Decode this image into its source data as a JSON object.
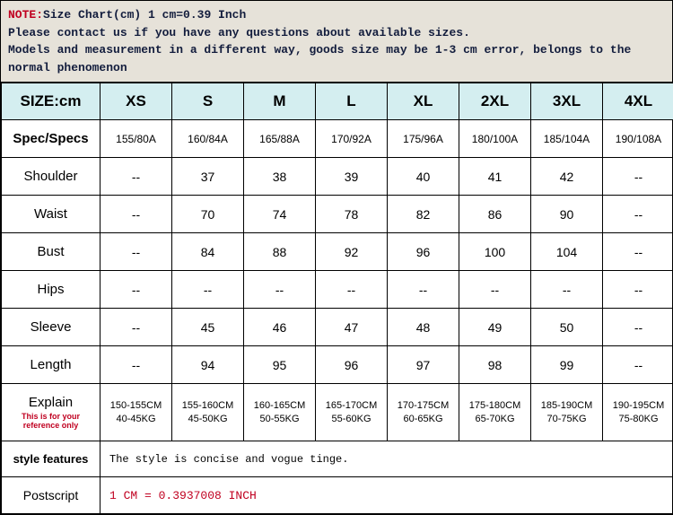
{
  "note": {
    "title": "NOTE:",
    "line1": "Size Chart(cm) 1 cm=0.39 Inch",
    "line2": "Please contact us if you have any questions about available sizes.",
    "line3": "Models and measurement in a different way, goods size may be 1-3 cm error, belongs to the normal phenomenon"
  },
  "colors": {
    "note_bg": "#e6e2d9",
    "note_text": "#131d3d",
    "accent_red": "#c00020",
    "header_bg": "#d4eef0"
  },
  "headers": [
    "SIZE:cm",
    "XS",
    "S",
    "M",
    "L",
    "XL",
    "2XL",
    "3XL",
    "4XL"
  ],
  "rows": [
    {
      "label": "Spec/Specs",
      "type": "spec",
      "cells": [
        "155/80A",
        "160/84A",
        "165/88A",
        "170/92A",
        "175/96A",
        "180/100A",
        "185/104A",
        "190/108A"
      ]
    },
    {
      "label": "Shoulder",
      "type": "data",
      "cells": [
        "--",
        "37",
        "38",
        "39",
        "40",
        "41",
        "42",
        "--"
      ]
    },
    {
      "label": "Waist",
      "type": "data",
      "cells": [
        "--",
        "70",
        "74",
        "78",
        "82",
        "86",
        "90",
        "--"
      ]
    },
    {
      "label": "Bust",
      "type": "data",
      "cells": [
        "--",
        "84",
        "88",
        "92",
        "96",
        "100",
        "104",
        "--"
      ]
    },
    {
      "label": "Hips",
      "type": "data",
      "cells": [
        "--",
        "--",
        "--",
        "--",
        "--",
        "--",
        "--",
        "--"
      ]
    },
    {
      "label": "Sleeve",
      "type": "data",
      "cells": [
        "--",
        "45",
        "46",
        "47",
        "48",
        "49",
        "50",
        "--"
      ]
    },
    {
      "label": "Length",
      "type": "data",
      "cells": [
        "--",
        "94",
        "95",
        "96",
        "97",
        "98",
        "99",
        "--"
      ]
    }
  ],
  "explain": {
    "label": "Explain",
    "sub": "This is for your reference only",
    "cells": [
      [
        "150-155CM",
        "40-45KG"
      ],
      [
        "155-160CM",
        "45-50KG"
      ],
      [
        "160-165CM",
        "50-55KG"
      ],
      [
        "165-170CM",
        "55-60KG"
      ],
      [
        "170-175CM",
        "60-65KG"
      ],
      [
        "175-180CM",
        "65-70KG"
      ],
      [
        "185-190CM",
        "70-75KG"
      ],
      [
        "190-195CM",
        "75-80KG"
      ]
    ]
  },
  "style_features": {
    "label": "style features",
    "text": "The style is concise and vogue tinge."
  },
  "postscript": {
    "label": "Postscript",
    "text": "1 CM = 0.3937008 INCH"
  }
}
